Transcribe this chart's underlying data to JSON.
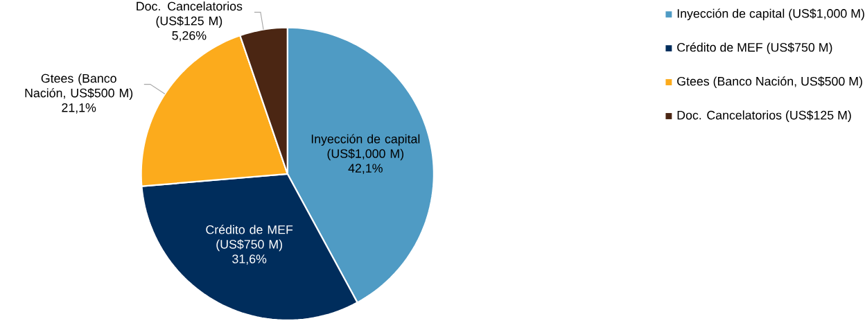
{
  "chart_data": {
    "type": "pie",
    "categories": [
      "Inyección de capital (US$1,000 M)",
      "Crédito de MEF (US$750 M)",
      "Gtees (Banco Nación, US$500 M)",
      "Doc. Cancelatorios (US$125 M)"
    ],
    "values": [
      42.1,
      31.6,
      21.1,
      5.26
    ],
    "value_labels": [
      "42,1%",
      "31,6%",
      "21,1%",
      "5,26%"
    ],
    "colors": [
      "#4f9bc4",
      "#002d5c",
      "#fcab1c",
      "#4b2613"
    ],
    "legend": "top right"
  }
}
